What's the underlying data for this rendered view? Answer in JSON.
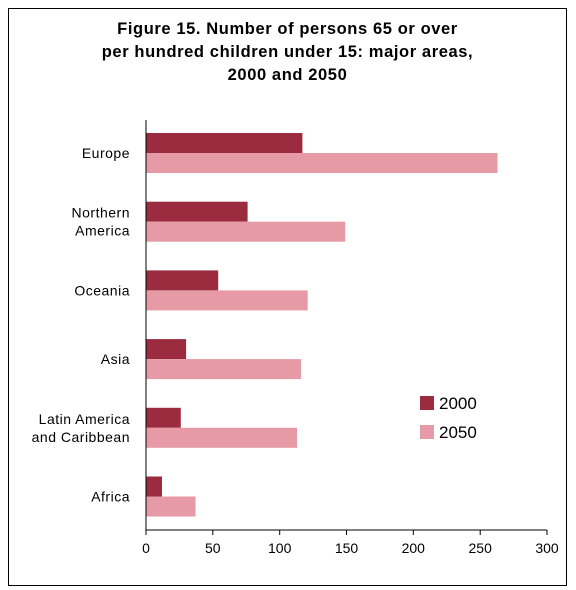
{
  "chart_data": {
    "type": "bar",
    "orientation": "horizontal",
    "title_lines": [
      "Figure 15.  Number of persons 65 or over",
      "per hundred children under 15: major areas,",
      "2000 and 2050"
    ],
    "categories": [
      [
        "Europe"
      ],
      [
        "Northern",
        "America"
      ],
      [
        "Oceania"
      ],
      [
        "Asia"
      ],
      [
        "Latin America",
        "and Caribbean"
      ],
      [
        "Africa"
      ]
    ],
    "series": [
      {
        "name": "2000",
        "color": "#9b2c3f",
        "values": [
          117,
          76,
          54,
          30,
          26,
          12
        ]
      },
      {
        "name": "2050",
        "color": "#e59aa6",
        "values": [
          263,
          149,
          121,
          116,
          113,
          37
        ]
      }
    ],
    "xlim": [
      0,
      300
    ],
    "xticks": [
      "0",
      "50",
      "100",
      "150",
      "200",
      "250",
      "300"
    ],
    "legend_position": "right",
    "grid": false
  }
}
